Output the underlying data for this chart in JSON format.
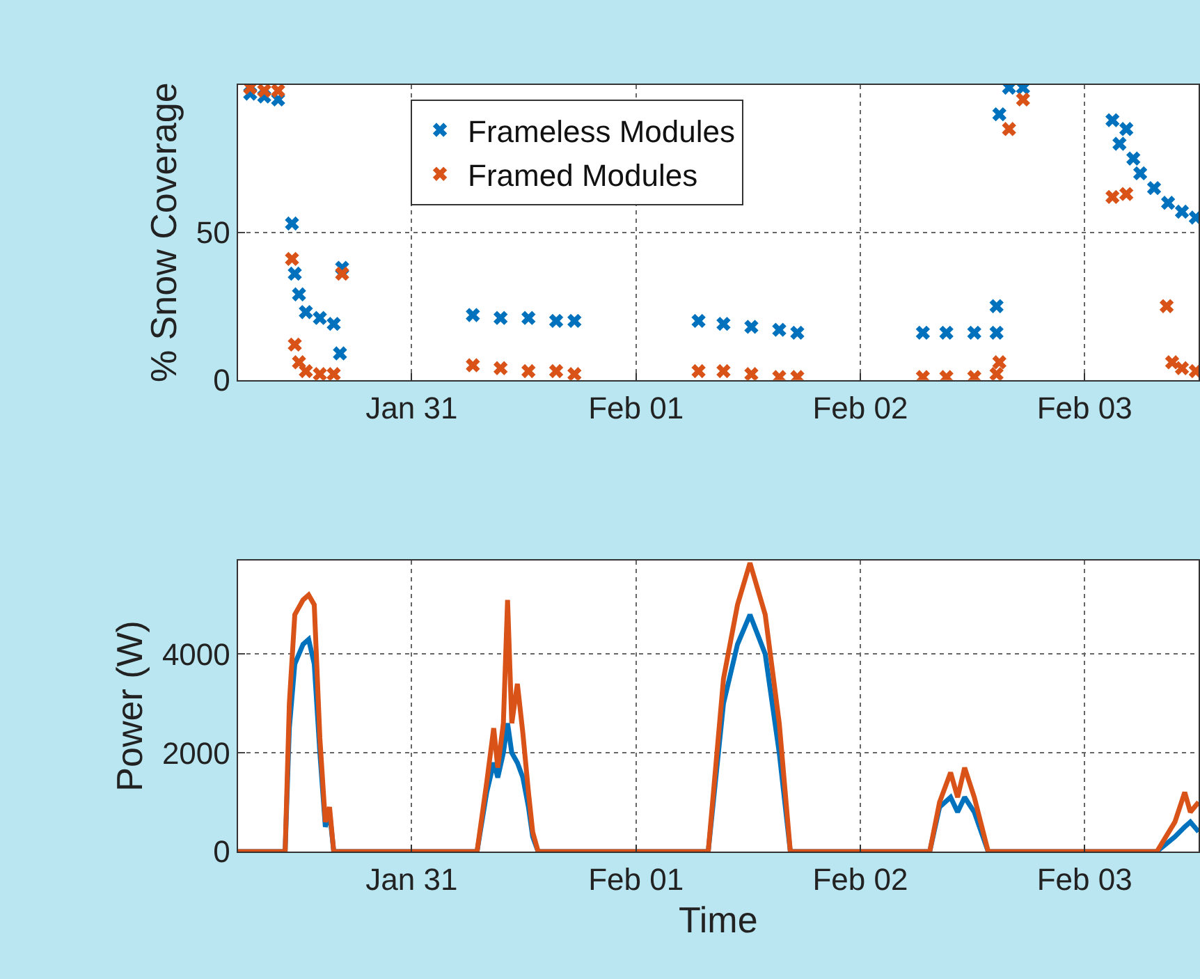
{
  "chart_data": [
    {
      "type": "scatter",
      "ylabel": "% Snow Coverage",
      "marker": "cross",
      "grid": true,
      "legend": "top left",
      "xlim": [
        "--01-30T05:24",
        "--02-03T12:12"
      ],
      "xticks": [
        {
          "value": "--01-31",
          "label": "Jan 31"
        },
        {
          "value": "--02-01",
          "label": "Feb 01"
        },
        {
          "value": "--02-02",
          "label": "Feb 02"
        },
        {
          "value": "--02-03",
          "label": "Feb 03"
        }
      ],
      "ylim": [
        0,
        100
      ],
      "yticks": [
        0,
        50
      ],
      "series": [
        {
          "name": "Frameless Modules",
          "color": "#0072bd",
          "x": [
            "--01-30T06:44",
            "--01-30T08:14",
            "--01-30T09:43",
            "--01-30T11:12",
            "--01-30T11:30",
            "--01-30T11:57",
            "--01-30T12:41",
            "--01-30T14:11",
            "--01-30T15:40",
            "--01-30T16:34",
            "--01-30T16:20",
            "--01-31T06:33",
            "--01-31T09:31",
            "--01-31T12:30",
            "--01-31T15:28",
            "--01-31T17:25",
            "--02-01T06:42",
            "--02-01T09:22",
            "--02-01T12:21",
            "--02-01T15:20",
            "--02-01T17:16",
            "--02-02T06:42",
            "--02-02T09:13",
            "--02-02T12:12",
            "--02-02T14:35",
            "--02-02T14:35",
            "--02-02T14:53",
            "--02-02T15:55",
            "--02-02T17:25",
            "--02-03T02:59",
            "--02-03T03:44",
            "--02-03T04:28",
            "--02-03T05:13",
            "--02-03T05:57",
            "--02-03T07:26",
            "--02-03T08:56",
            "--02-03T10:25",
            "--02-03T11:54"
          ],
          "values": [
            97,
            96,
            95,
            53,
            36,
            29,
            23,
            21,
            19,
            38,
            9,
            22,
            21,
            21,
            20,
            20,
            20,
            19,
            18,
            17,
            16,
            16,
            16,
            16,
            16,
            25,
            90,
            99,
            99,
            88,
            80,
            85,
            75,
            70,
            65,
            60,
            57,
            55
          ]
        },
        {
          "name": "Framed Modules",
          "color": "#d95319",
          "x": [
            "--01-30T06:44",
            "--01-30T08:14",
            "--01-30T09:43",
            "--01-30T11:12",
            "--01-30T11:30",
            "--01-30T11:57",
            "--01-30T12:41",
            "--01-30T14:11",
            "--01-30T15:40",
            "--01-30T16:34",
            "--01-31T06:33",
            "--01-31T09:31",
            "--01-31T12:30",
            "--01-31T15:28",
            "--01-31T17:25",
            "--02-01T06:42",
            "--02-01T09:22",
            "--02-01T12:21",
            "--02-01T15:20",
            "--02-01T17:16",
            "--02-02T06:42",
            "--02-02T09:13",
            "--02-02T12:12",
            "--02-02T14:35",
            "--02-02T14:53",
            "--02-02T15:55",
            "--02-02T17:25",
            "--02-03T02:59",
            "--02-03T04:28",
            "--02-03T08:47",
            "--02-03T09:22",
            "--02-03T10:25",
            "--02-03T11:54"
          ],
          "values": [
            99,
            98,
            98,
            41,
            12,
            6,
            3,
            2,
            2,
            36,
            5,
            4,
            3,
            3,
            2,
            3,
            3,
            2,
            1,
            1,
            1,
            1,
            1,
            2,
            6,
            85,
            95,
            62,
            63,
            25,
            6,
            4,
            3
          ]
        }
      ]
    },
    {
      "type": "line",
      "ylabel": "Power (W)",
      "xlabel": "Time",
      "grid": true,
      "xlim": [
        "--01-30T05:24",
        "--02-03T12:12"
      ],
      "xticks": [
        {
          "value": "--01-31",
          "label": "Jan 31"
        },
        {
          "value": "--02-01",
          "label": "Feb 01"
        },
        {
          "value": "--02-02",
          "label": "Feb 02"
        },
        {
          "value": "--02-03",
          "label": "Feb 03"
        }
      ],
      "ylim": [
        0,
        5900
      ],
      "yticks": [
        0,
        2000,
        4000
      ],
      "series": [
        {
          "color": "#0072bd",
          "x": [
            "--01-30T05:24",
            "--01-30T10:28",
            "--01-30T10:55",
            "--01-30T11:30",
            "--01-30T12:23",
            "--01-30T12:59",
            "--01-30T13:35",
            "--01-30T14:11",
            "--01-30T14:46",
            "--01-30T15:13",
            "--01-30T15:40",
            "--01-31T07:00",
            "--01-31T08:02",
            "--01-31T08:47",
            "--01-31T09:13",
            "--01-31T09:49",
            "--01-31T10:16",
            "--01-31T10:43",
            "--01-31T11:19",
            "--01-31T11:54",
            "--01-31T12:30",
            "--01-31T12:57",
            "--01-31T13:32",
            "--02-01T07:44",
            "--02-01T09:22",
            "--02-01T10:52",
            "--02-01T12:12",
            "--02-01T13:50",
            "--02-01T15:20",
            "--02-01T16:31",
            "--02-02T07:26",
            "--02-02T08:29",
            "--02-02T09:40",
            "--02-02T10:25",
            "--02-02T11:10",
            "--02-02T12:12",
            "--02-02T13:41",
            "--02-03T07:44",
            "--02-03T09:40",
            "--02-03T10:43",
            "--02-03T11:19",
            "--02-03T12:12"
          ],
          "values": [
            0,
            0,
            2500,
            3800,
            4200,
            4300,
            3800,
            2000,
            500,
            800,
            0,
            0,
            1200,
            1800,
            1500,
            2000,
            2600,
            2000,
            1800,
            1500,
            900,
            300,
            0,
            0,
            3000,
            4200,
            4800,
            4000,
            2000,
            0,
            0,
            900,
            1100,
            800,
            1100,
            800,
            0,
            0,
            300,
            500,
            600,
            400
          ]
        },
        {
          "color": "#d95319",
          "x": [
            "--01-30T05:24",
            "--01-30T10:28",
            "--01-30T10:55",
            "--01-30T11:30",
            "--01-30T12:23",
            "--01-30T12:59",
            "--01-30T13:35",
            "--01-30T14:11",
            "--01-30T14:46",
            "--01-30T15:13",
            "--01-30T15:40",
            "--01-31T07:00",
            "--01-31T08:02",
            "--01-31T08:47",
            "--01-31T09:13",
            "--01-31T09:49",
            "--01-31T10:16",
            "--01-31T10:43",
            "--01-31T11:19",
            "--01-31T11:54",
            "--01-31T12:30",
            "--01-31T12:57",
            "--01-31T13:32",
            "--02-01T07:44",
            "--02-01T09:22",
            "--02-01T10:52",
            "--02-01T12:12",
            "--02-01T13:50",
            "--02-01T15:20",
            "--02-01T16:31",
            "--02-02T07:26",
            "--02-02T08:29",
            "--02-02T09:40",
            "--02-02T10:25",
            "--02-02T11:10",
            "--02-02T12:12",
            "--02-02T13:41",
            "--02-03T07:44",
            "--02-03T09:40",
            "--02-03T10:43",
            "--02-03T11:19",
            "--02-03T12:12"
          ],
          "values": [
            0,
            0,
            3000,
            4800,
            5100,
            5200,
            5000,
            2300,
            600,
            900,
            0,
            0,
            1400,
            2500,
            1700,
            2600,
            5100,
            2600,
            3400,
            2400,
            1200,
            400,
            0,
            0,
            3500,
            5000,
            5850,
            4800,
            2600,
            0,
            0,
            1000,
            1600,
            1100,
            1700,
            1100,
            0,
            0,
            600,
            1200,
            800,
            1000
          ]
        }
      ]
    }
  ]
}
